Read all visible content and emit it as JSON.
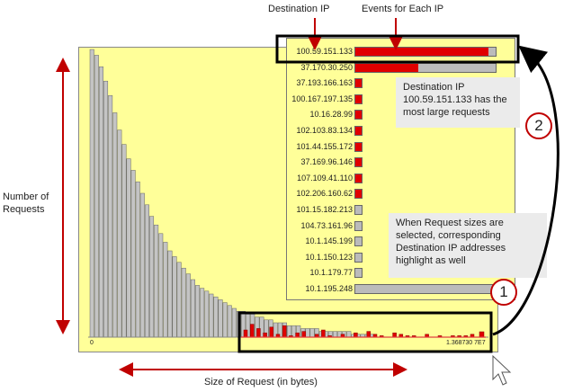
{
  "top_labels": {
    "destination_ip": "Destination IP",
    "events_per_ip": "Events for Each IP"
  },
  "left_label": [
    "Number of",
    "Requests"
  ],
  "bottom_label": "Size of Request (in bytes)",
  "axis": {
    "min": "0",
    "max": "1.368730 7E7"
  },
  "ip_rows": [
    {
      "ip": "100.59.151.133",
      "fill": 0.95,
      "full": true
    },
    {
      "ip": "37.170.30.250",
      "fill": 0.45,
      "full": true
    },
    {
      "ip": "37.193.166.163",
      "fill": 1.0,
      "full": false
    },
    {
      "ip": "100.167.197.135",
      "fill": 1.0,
      "full": false
    },
    {
      "ip": "10.16.28.99",
      "fill": 1.0,
      "full": false
    },
    {
      "ip": "102.103.83.134",
      "fill": 1.0,
      "full": false
    },
    {
      "ip": "101.44.155.172",
      "fill": 1.0,
      "full": false
    },
    {
      "ip": "37.169.96.146",
      "fill": 1.0,
      "full": false
    },
    {
      "ip": "107.109.41.110",
      "fill": 1.0,
      "full": false
    },
    {
      "ip": "102.206.160.62",
      "fill": 1.0,
      "full": false
    },
    {
      "ip": "101.15.182.213",
      "fill": 0.0,
      "full": false
    },
    {
      "ip": "104.73.161.96",
      "fill": 0.0,
      "full": false
    },
    {
      "ip": "10.1.145.199",
      "fill": 0.0,
      "full": false
    },
    {
      "ip": "10.1.150.123",
      "fill": 0.0,
      "full": false
    },
    {
      "ip": "10.1.179.77",
      "fill": 0.0,
      "full": false
    },
    {
      "ip": "10.1.195.248",
      "fill": 0.0,
      "full": true
    }
  ],
  "note1": "Destination IP 100.59.151.133 has the most large requests",
  "note2": "When Request sizes are selected, corresponding Destination IP addresses highlight as well",
  "circles": {
    "one": "1",
    "two": "2"
  },
  "colors": {
    "panel": "#ffff99",
    "highlight": "#e00000",
    "arrow": "#c00000",
    "gray_bar": "#bbbbbb"
  },
  "histogram_bins": [
    100,
    98,
    94,
    89,
    84,
    78,
    72,
    67,
    62,
    58,
    54,
    50,
    46,
    42,
    39,
    36,
    33,
    30,
    28,
    26,
    24,
    22,
    20,
    18,
    17,
    16,
    15,
    14,
    13,
    12,
    11,
    10,
    9,
    9,
    8,
    8,
    7,
    7,
    6,
    6,
    5,
    5,
    5,
    4,
    4,
    4,
    3,
    3,
    3,
    3,
    2,
    2,
    2,
    2,
    2,
    2,
    2,
    1,
    1,
    1,
    1,
    1
  ],
  "selected_bins": [
    5,
    9,
    6,
    3,
    7,
    2,
    8,
    1,
    3,
    4,
    0,
    2,
    5,
    1,
    0,
    2,
    0,
    3,
    0,
    4,
    2,
    1,
    0,
    3,
    2,
    1,
    1,
    0,
    2,
    0,
    1,
    0,
    1,
    1,
    1,
    2
  ]
}
